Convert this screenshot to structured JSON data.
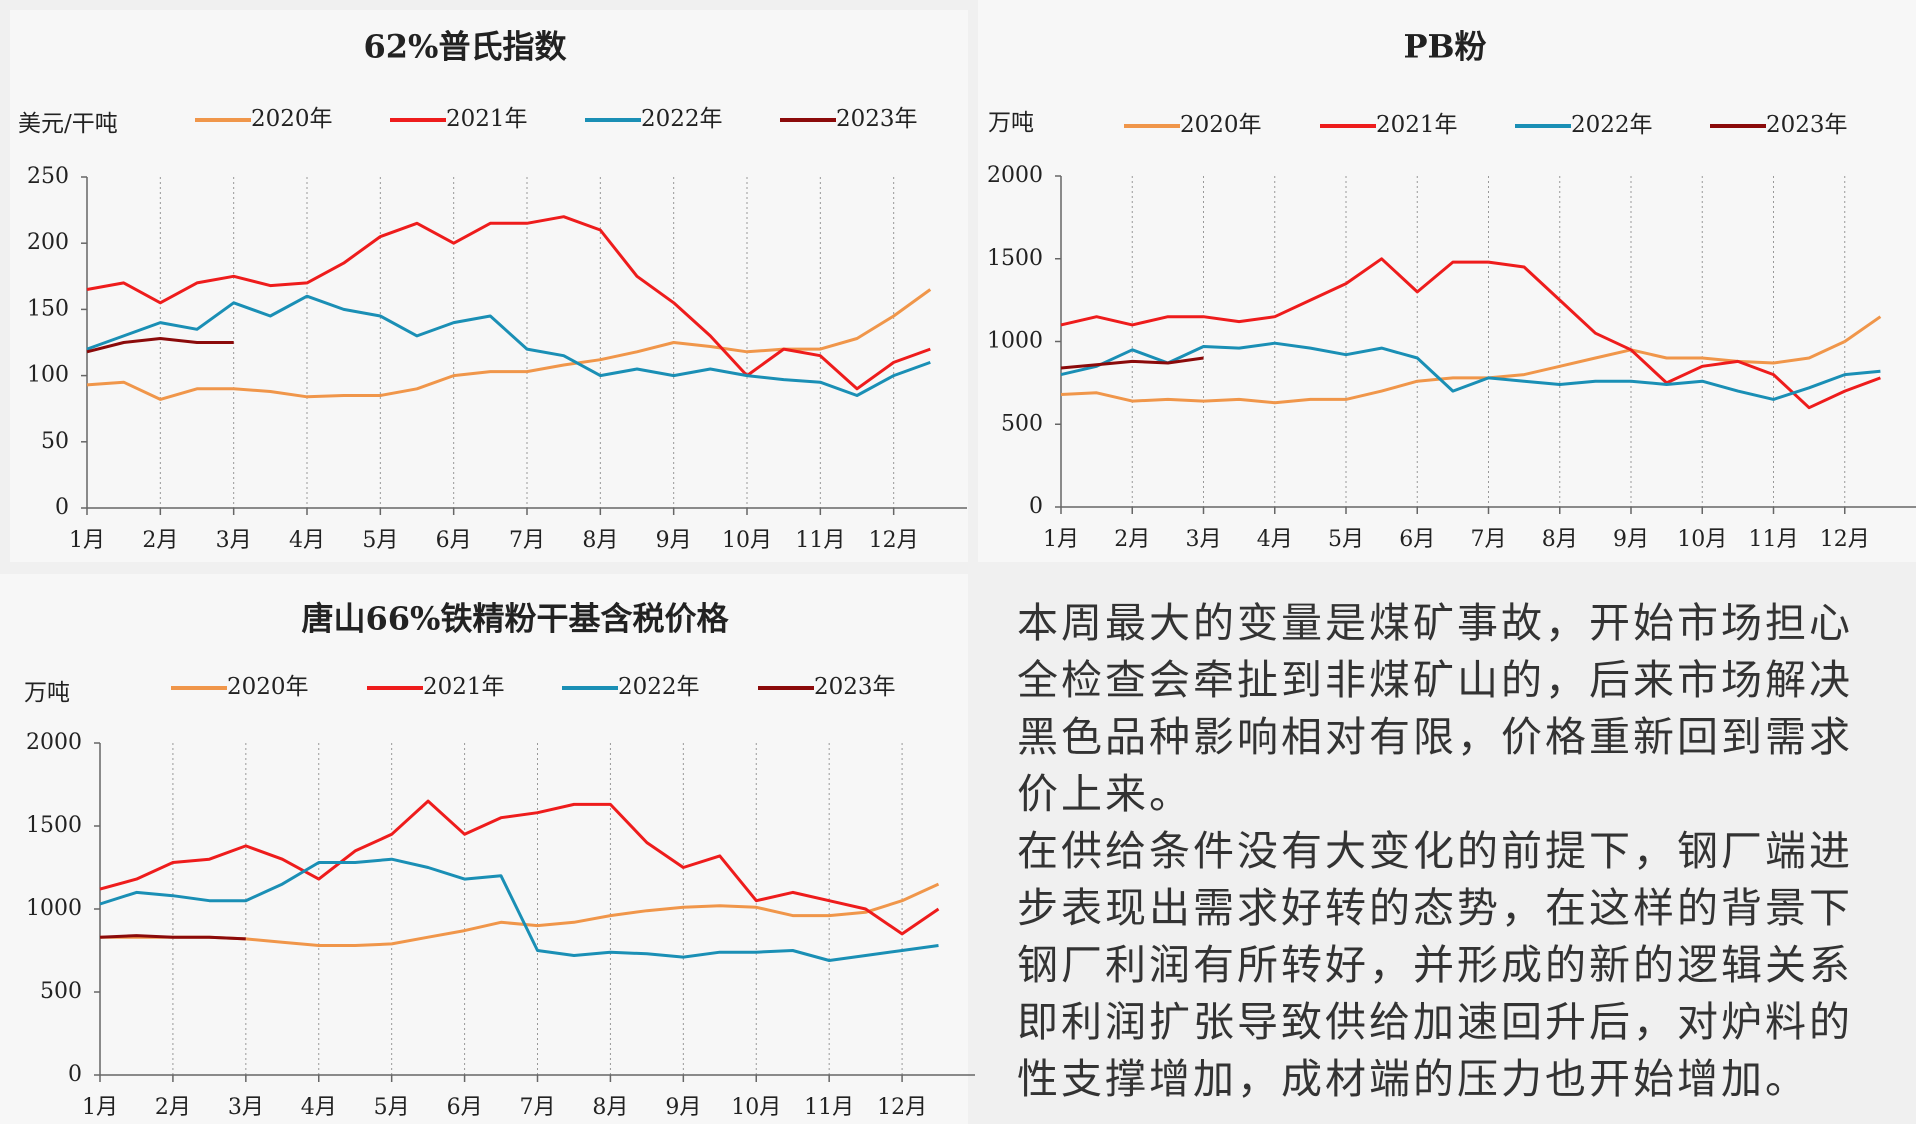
{
  "chart_data": [
    {
      "type": "line",
      "title": "62%普氏指数",
      "y_label": "美元/干吨",
      "x": [
        1,
        1.5,
        2,
        2.5,
        3,
        3.5,
        4,
        4.5,
        5,
        5.5,
        6,
        6.5,
        7,
        7.5,
        8,
        8.5,
        9,
        9.5,
        10,
        10.5,
        11,
        11.5,
        12,
        12.5
      ],
      "xlim": [
        1,
        13
      ],
      "xticks": [
        {
          "value": 1,
          "label": "1月"
        },
        {
          "value": 2,
          "label": "2月"
        },
        {
          "value": 3,
          "label": "3月"
        },
        {
          "value": 4,
          "label": "4月"
        },
        {
          "value": 5,
          "label": "5月"
        },
        {
          "value": 6,
          "label": "6月"
        },
        {
          "value": 7,
          "label": "7月"
        },
        {
          "value": 8,
          "label": "8月"
        },
        {
          "value": 9,
          "label": "9月"
        },
        {
          "value": 10,
          "label": "10月"
        },
        {
          "value": 11,
          "label": "11月"
        },
        {
          "value": 12,
          "label": "12月"
        }
      ],
      "ylim": [
        0,
        250
      ],
      "yticks": [
        0,
        50,
        100,
        150,
        200,
        250
      ],
      "grid": true,
      "series": [
        {
          "name": "2020年",
          "color": "#f0964a",
          "values": [
            93,
            95,
            82,
            90,
            90,
            88,
            84,
            85,
            85,
            90,
            100,
            103,
            103,
            108,
            112,
            118,
            125,
            122,
            118,
            120,
            120,
            128,
            145,
            165
          ]
        },
        {
          "name": "2021年",
          "color": "#ee1c1c",
          "values": [
            165,
            170,
            155,
            170,
            175,
            168,
            170,
            185,
            205,
            215,
            200,
            215,
            215,
            220,
            210,
            175,
            155,
            130,
            100,
            120,
            115,
            90,
            110,
            120
          ]
        },
        {
          "name": "2022年",
          "color": "#1a8fb5",
          "values": [
            120,
            130,
            140,
            135,
            155,
            145,
            160,
            150,
            145,
            130,
            140,
            145,
            120,
            115,
            100,
            105,
            100,
            105,
            100,
            97,
            95,
            85,
            100,
            110
          ]
        },
        {
          "name": "2023年",
          "color": "#8b0a0a",
          "values": [
            118,
            125,
            128,
            125,
            125,
            null,
            null,
            null,
            null,
            null,
            null,
            null,
            null,
            null,
            null,
            null,
            null,
            null,
            null,
            null,
            null,
            null,
            null,
            null
          ]
        }
      ]
    },
    {
      "type": "line",
      "title": "PB粉",
      "y_label": "万吨",
      "x": [
        1,
        1.5,
        2,
        2.5,
        3,
        3.5,
        4,
        4.5,
        5,
        5.5,
        6,
        6.5,
        7,
        7.5,
        8,
        8.5,
        9,
        9.5,
        10,
        10.5,
        11,
        11.5,
        12,
        12.5
      ],
      "xlim": [
        1,
        13
      ],
      "xticks": [
        {
          "value": 1,
          "label": "1月"
        },
        {
          "value": 2,
          "label": "2月"
        },
        {
          "value": 3,
          "label": "3月"
        },
        {
          "value": 4,
          "label": "4月"
        },
        {
          "value": 5,
          "label": "5月"
        },
        {
          "value": 6,
          "label": "6月"
        },
        {
          "value": 7,
          "label": "7月"
        },
        {
          "value": 8,
          "label": "8月"
        },
        {
          "value": 9,
          "label": "9月"
        },
        {
          "value": 10,
          "label": "10月"
        },
        {
          "value": 11,
          "label": "11月"
        },
        {
          "value": 12,
          "label": "12月"
        }
      ],
      "ylim": [
        0,
        2000
      ],
      "yticks": [
        0,
        500,
        1000,
        1500,
        2000
      ],
      "grid": true,
      "series": [
        {
          "name": "2020年",
          "color": "#f0964a",
          "values": [
            680,
            690,
            640,
            650,
            640,
            650,
            630,
            650,
            650,
            700,
            760,
            780,
            780,
            800,
            850,
            900,
            950,
            900,
            900,
            880,
            870,
            900,
            1000,
            1150
          ]
        },
        {
          "name": "2021年",
          "color": "#ee1c1c",
          "values": [
            1100,
            1150,
            1100,
            1150,
            1150,
            1120,
            1150,
            1250,
            1350,
            1500,
            1300,
            1480,
            1480,
            1450,
            1250,
            1050,
            950,
            750,
            850,
            880,
            800,
            600,
            700,
            780
          ]
        },
        {
          "name": "2022年",
          "color": "#1a8fb5",
          "values": [
            800,
            850,
            950,
            870,
            970,
            960,
            990,
            960,
            920,
            960,
            900,
            700,
            780,
            760,
            740,
            760,
            760,
            740,
            760,
            700,
            650,
            720,
            800,
            820
          ]
        },
        {
          "name": "2023年",
          "color": "#8b0a0a",
          "values": [
            840,
            860,
            880,
            870,
            900,
            null,
            null,
            null,
            null,
            null,
            null,
            null,
            null,
            null,
            null,
            null,
            null,
            null,
            null,
            null,
            null,
            null,
            null,
            null
          ]
        }
      ]
    },
    {
      "type": "line",
      "title": "唐山66%铁精粉干基含税价格",
      "y_label": "万吨",
      "x": [
        1,
        1.5,
        2,
        2.5,
        3,
        3.5,
        4,
        4.5,
        5,
        5.5,
        6,
        6.5,
        7,
        7.5,
        8,
        8.5,
        9,
        9.5,
        10,
        10.5,
        11,
        11.5,
        12,
        12.5
      ],
      "xlim": [
        1,
        13
      ],
      "xticks": [
        {
          "value": 1,
          "label": "1月"
        },
        {
          "value": 2,
          "label": "2月"
        },
        {
          "value": 3,
          "label": "3月"
        },
        {
          "value": 4,
          "label": "4月"
        },
        {
          "value": 5,
          "label": "5月"
        },
        {
          "value": 6,
          "label": "6月"
        },
        {
          "value": 7,
          "label": "7月"
        },
        {
          "value": 8,
          "label": "8月"
        },
        {
          "value": 9,
          "label": "9月"
        },
        {
          "value": 10,
          "label": "10月"
        },
        {
          "value": 11,
          "label": "11月"
        },
        {
          "value": 12,
          "label": "12月"
        }
      ],
      "ylim": [
        0,
        2000
      ],
      "yticks": [
        0,
        500,
        1000,
        1500,
        2000
      ],
      "grid": true,
      "series": [
        {
          "name": "2020年",
          "color": "#f0964a",
          "values": [
            830,
            830,
            830,
            830,
            820,
            800,
            780,
            780,
            790,
            830,
            870,
            920,
            900,
            920,
            960,
            990,
            1010,
            1020,
            1010,
            960,
            960,
            980,
            1050,
            1150
          ]
        },
        {
          "name": "2021年",
          "color": "#ee1c1c",
          "values": [
            1120,
            1180,
            1280,
            1300,
            1380,
            1300,
            1180,
            1350,
            1450,
            1650,
            1450,
            1550,
            1580,
            1630,
            1630,
            1400,
            1250,
            1320,
            1050,
            1100,
            1050,
            1000,
            850,
            1000
          ]
        },
        {
          "name": "2022年",
          "color": "#1a8fb5",
          "values": [
            1030,
            1100,
            1080,
            1050,
            1050,
            1150,
            1280,
            1280,
            1300,
            1250,
            1180,
            1200,
            750,
            720,
            740,
            730,
            710,
            740,
            740,
            750,
            690,
            720,
            750,
            780
          ]
        },
        {
          "name": "2023年",
          "color": "#8b0a0a",
          "values": [
            830,
            840,
            830,
            830,
            820,
            null,
            null,
            null,
            null,
            null,
            null,
            null,
            null,
            null,
            null,
            null,
            null,
            null,
            null,
            null,
            null,
            null,
            null,
            null
          ]
        }
      ]
    }
  ],
  "text": {
    "lines": [
      "本周最大的变量是煤矿事故，开始市场担心",
      "全检查会牵扯到非煤矿山的，后来市场解决",
      "黑色品种影响相对有限，价格重新回到需求",
      "价上来。",
      "在供给条件没有大变化的前提下，钢厂端进",
      "步表现出需求好转的态势，在这样的背景下",
      "钢厂利润有所转好，并形成的新的逻辑关系",
      "即利润扩张导致供给加速回升后，对炉料的",
      "性支撑增加，成材端的压力也开始增加。"
    ]
  }
}
